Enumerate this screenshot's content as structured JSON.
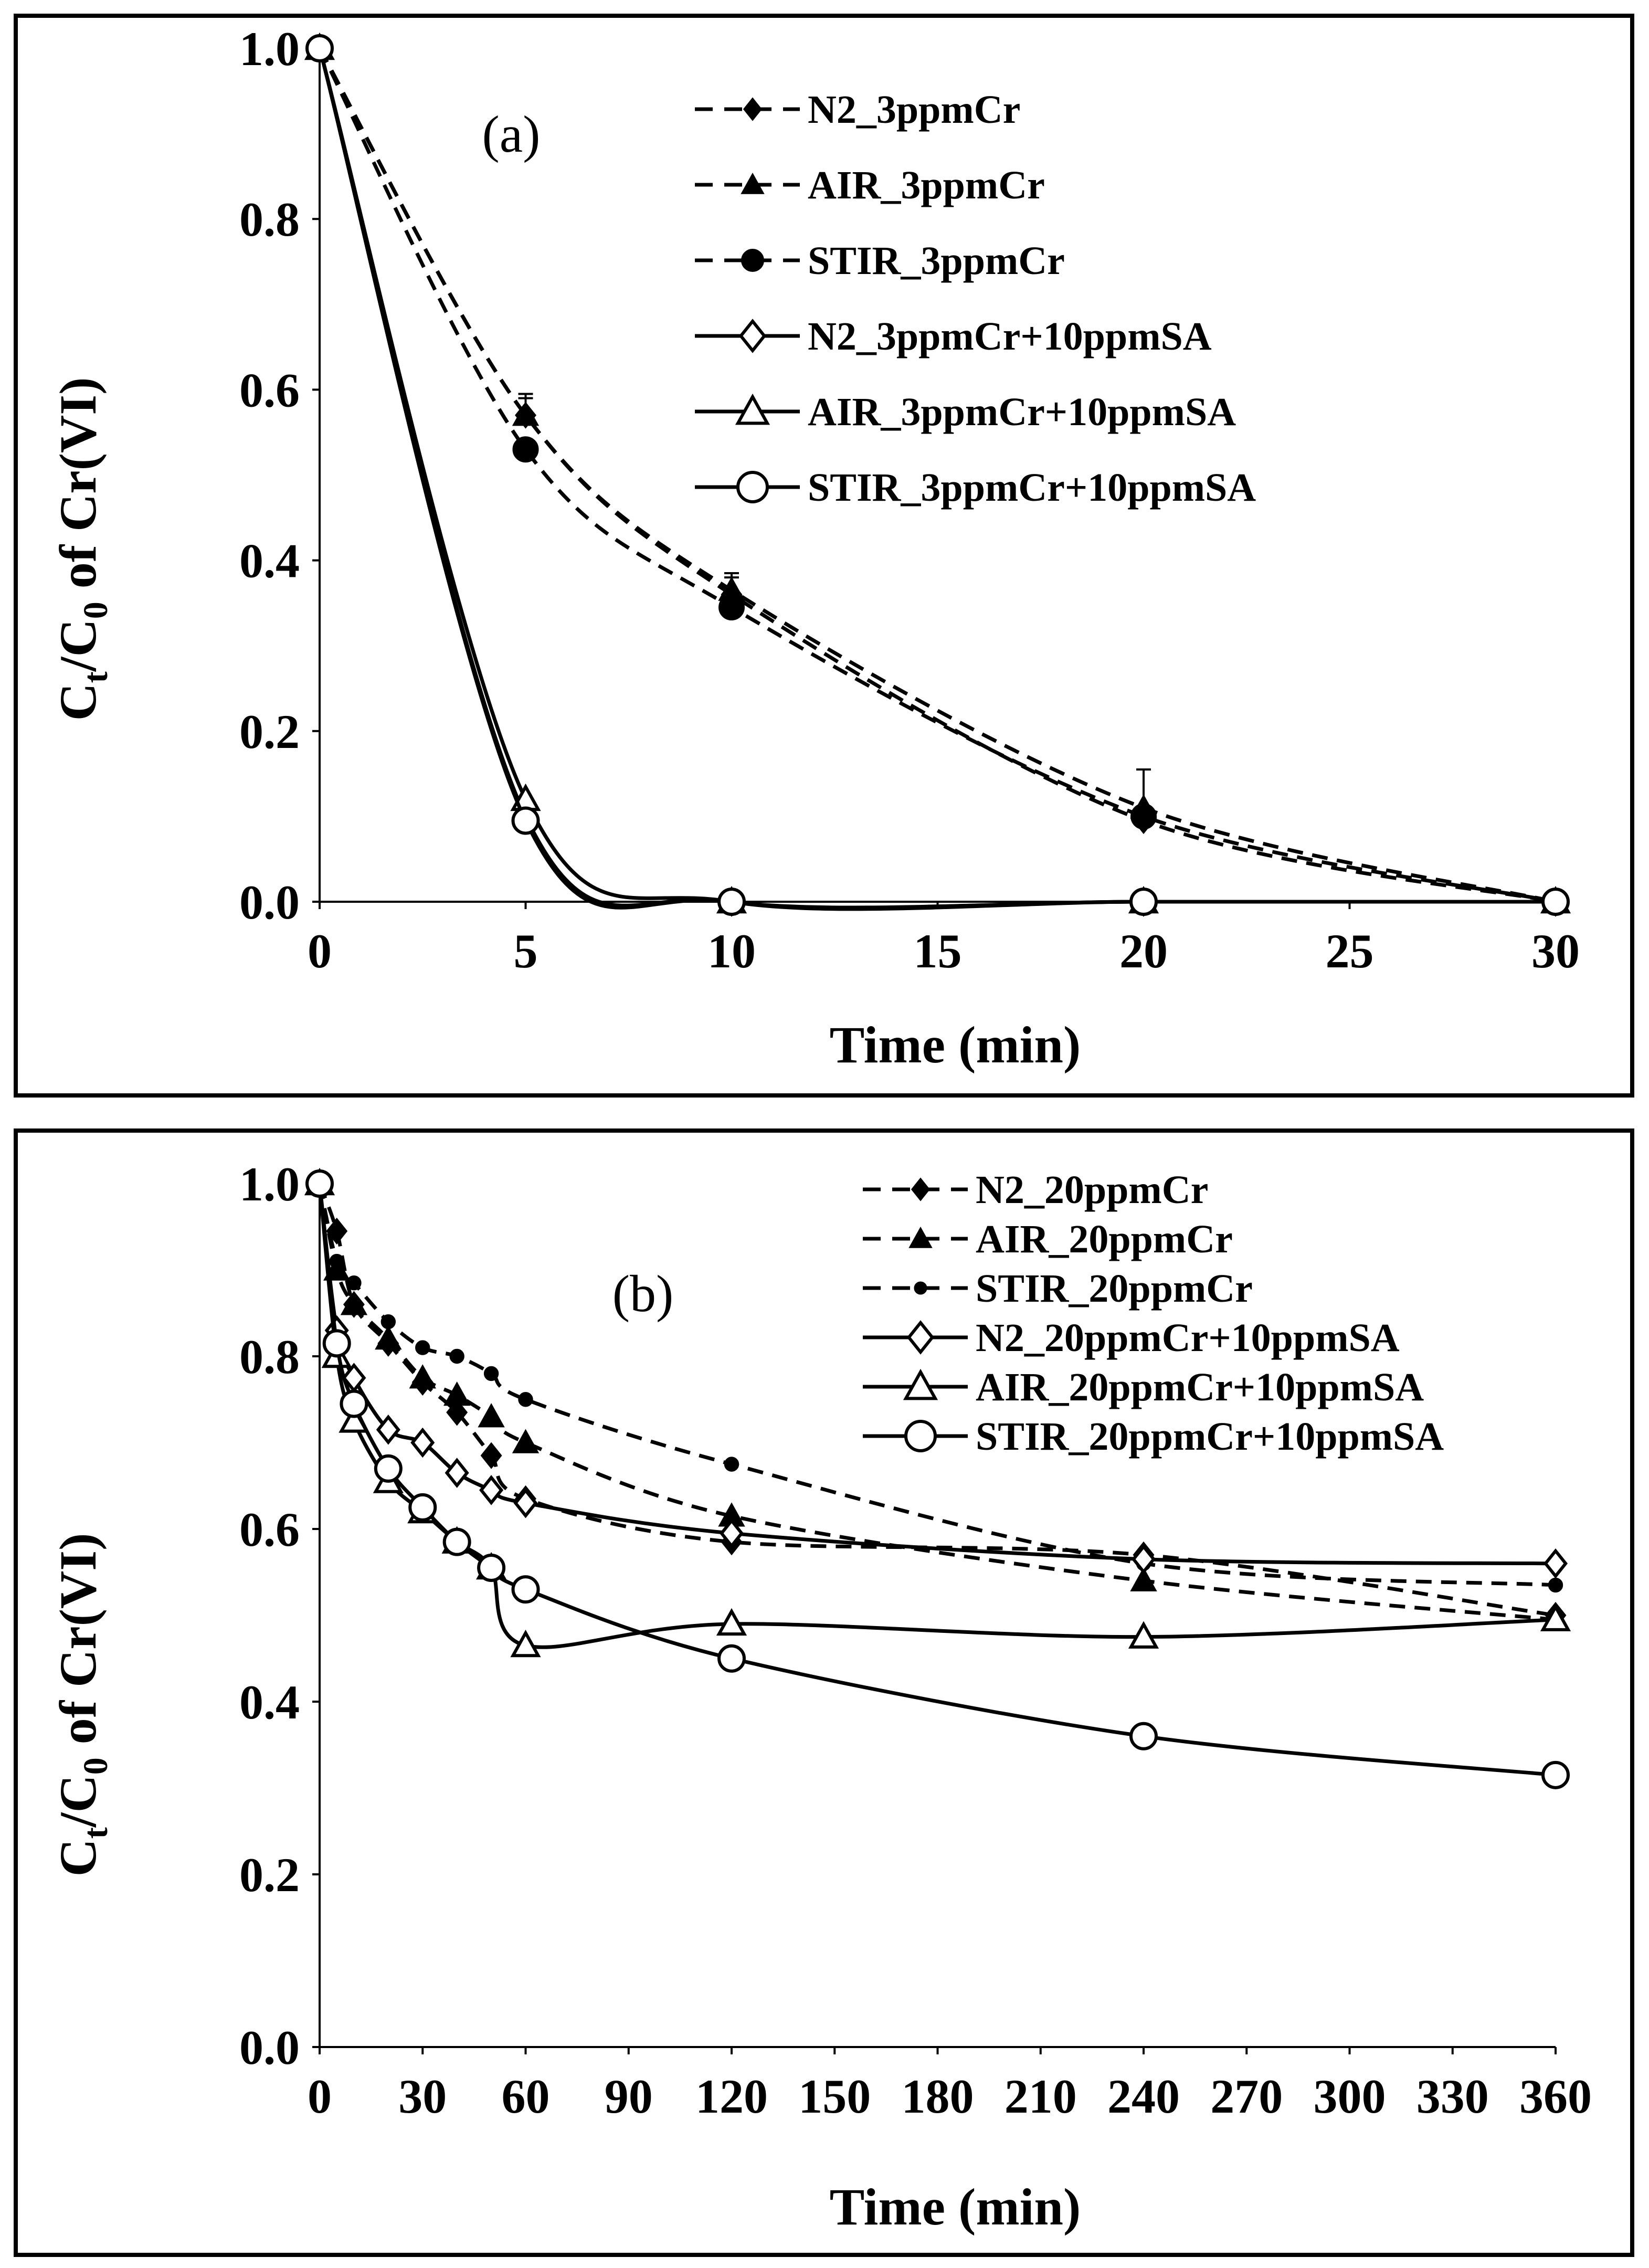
{
  "chart_data": [
    {
      "type": "line",
      "panel_label": "(a)",
      "xlabel": "Time (min)",
      "ylabel_parts": [
        "C",
        "t",
        "/C",
        "0",
        " of Cr(VI)"
      ],
      "xlim": [
        0,
        30
      ],
      "ylim": [
        0,
        1.0
      ],
      "xticks": [
        0,
        5,
        10,
        15,
        20,
        25,
        30
      ],
      "xtick_labels": [
        "0",
        "5",
        "10",
        "15",
        "20",
        "25",
        "30"
      ],
      "yticks": [
        0,
        0.2,
        0.4,
        0.6,
        0.8,
        1.0
      ],
      "ytick_labels": [
        "0.0",
        "0.2",
        "0.4",
        "0.6",
        "0.8",
        "1.0"
      ],
      "legend_position": "top-right",
      "series": [
        {
          "name": "N2_3ppmCr",
          "marker": "diamond-filled",
          "dash": true,
          "x": [
            0,
            5,
            10,
            20,
            30
          ],
          "y": [
            1.0,
            0.57,
            0.36,
            0.095,
            0.0
          ],
          "errors": [
            0,
            0.02,
            0.02,
            0.01,
            0
          ]
        },
        {
          "name": "AIR_3ppmCr",
          "marker": "triangle-filled",
          "dash": true,
          "x": [
            0,
            5,
            10,
            20,
            30
          ],
          "y": [
            1.0,
            0.57,
            0.365,
            0.11,
            0.0
          ],
          "errors": [
            0,
            0.025,
            0.02,
            0.045,
            0
          ]
        },
        {
          "name": "STIR_3ppmCr",
          "marker": "circle-filled",
          "dash": true,
          "x": [
            0,
            5,
            10,
            20,
            30
          ],
          "y": [
            1.0,
            0.53,
            0.345,
            0.1,
            0.0
          ],
          "errors": [
            0,
            0.01,
            0.01,
            0.01,
            0
          ]
        },
        {
          "name": "N2_3ppmCr+10ppmSA",
          "marker": "diamond-open",
          "dash": false,
          "x": [
            0,
            5,
            10,
            20,
            30
          ],
          "y": [
            1.0,
            0.1,
            0.0,
            0.0,
            0.0
          ]
        },
        {
          "name": "AIR_3ppmCr+10ppmSA",
          "marker": "triangle-open",
          "dash": false,
          "x": [
            0,
            5,
            10,
            20,
            30
          ],
          "y": [
            1.0,
            0.12,
            0.0,
            0.0,
            0.0
          ]
        },
        {
          "name": "STIR_3ppmCr+10ppmSA",
          "marker": "circle-open",
          "dash": false,
          "x": [
            0,
            5,
            10,
            20,
            30
          ],
          "y": [
            1.0,
            0.095,
            0.0,
            0.0,
            0.0
          ]
        }
      ]
    },
    {
      "type": "line",
      "panel_label": "(b)",
      "xlabel": "Time (min)",
      "ylabel_parts": [
        "C",
        "t",
        "/C",
        "0",
        " of Cr(VI)"
      ],
      "xlim": [
        0,
        360
      ],
      "ylim": [
        0,
        1.0
      ],
      "xticks": [
        0,
        30,
        60,
        90,
        120,
        150,
        180,
        210,
        240,
        270,
        300,
        330,
        360
      ],
      "xtick_labels": [
        "0",
        "30",
        "60",
        "90",
        "120",
        "150",
        "180",
        "210",
        "240",
        "270",
        "300",
        "330",
        "360"
      ],
      "yticks": [
        0,
        0.2,
        0.4,
        0.6,
        0.8,
        1.0
      ],
      "ytick_labels": [
        "0.0",
        "0.2",
        "0.4",
        "0.6",
        "0.8",
        "1.0"
      ],
      "legend_position": "top-right",
      "series": [
        {
          "name": "N2_20ppmCr",
          "marker": "diamond-filled",
          "dash": true,
          "x": [
            0,
            5,
            10,
            20,
            30,
            40,
            50,
            60,
            120,
            240,
            360
          ],
          "y": [
            1.0,
            0.945,
            0.86,
            0.815,
            0.77,
            0.735,
            0.685,
            0.635,
            0.585,
            0.57,
            0.5
          ]
        },
        {
          "name": "AIR_20ppmCr",
          "marker": "triangle-filled",
          "dash": true,
          "x": [
            0,
            5,
            10,
            20,
            30,
            40,
            50,
            60,
            120,
            240,
            360
          ],
          "y": [
            1.0,
            0.9,
            0.86,
            0.82,
            0.775,
            0.755,
            0.73,
            0.7,
            0.615,
            0.54,
            0.495
          ]
        },
        {
          "name": "STIR_20ppmCr",
          "marker": "dot-filled",
          "dash": true,
          "x": [
            0,
            5,
            10,
            20,
            30,
            40,
            50,
            60,
            120,
            240,
            360
          ],
          "y": [
            1.0,
            0.91,
            0.885,
            0.84,
            0.81,
            0.8,
            0.78,
            0.75,
            0.675,
            0.56,
            0.535
          ]
        },
        {
          "name": "N2_20ppmCr+10ppmSA",
          "marker": "diamond-open",
          "dash": false,
          "x": [
            0,
            5,
            10,
            20,
            30,
            40,
            50,
            60,
            120,
            240,
            360
          ],
          "y": [
            1.0,
            0.83,
            0.775,
            0.715,
            0.7,
            0.665,
            0.645,
            0.63,
            0.595,
            0.565,
            0.56
          ]
        },
        {
          "name": "AIR_20ppmCr+10ppmSA",
          "marker": "triangle-open",
          "dash": false,
          "x": [
            0,
            5,
            10,
            20,
            30,
            40,
            50,
            60,
            120,
            240,
            360
          ],
          "y": [
            1.0,
            0.8,
            0.725,
            0.655,
            0.62,
            0.585,
            0.555,
            0.465,
            0.49,
            0.475,
            0.495
          ]
        },
        {
          "name": "STIR_20ppmCr+10ppmSA",
          "marker": "circle-open",
          "dash": false,
          "x": [
            0,
            5,
            10,
            20,
            30,
            40,
            50,
            60,
            120,
            240,
            360
          ],
          "y": [
            1.0,
            0.815,
            0.745,
            0.67,
            0.625,
            0.585,
            0.555,
            0.53,
            0.45,
            0.36,
            0.315
          ]
        }
      ]
    }
  ]
}
